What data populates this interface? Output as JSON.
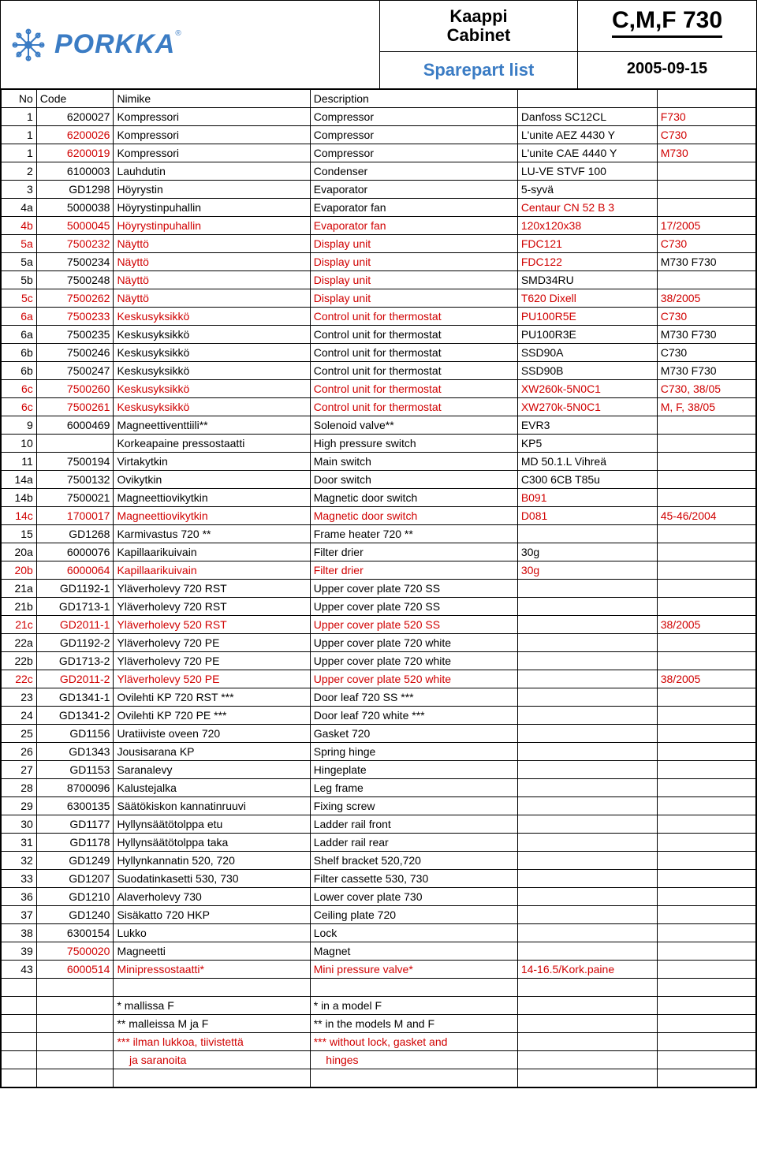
{
  "header": {
    "logo_text": "PORKKA",
    "title_line1": "Kaappi",
    "title_line2": "Cabinet",
    "model": "C,M,F 730",
    "sparepart": "Sparepart list",
    "date": "2005-09-15"
  },
  "columns": [
    "No",
    "Code",
    "Nimike",
    "Description",
    "",
    ""
  ],
  "rows": [
    {
      "no": "1",
      "code": "6200027",
      "nimike": "Kompressori",
      "desc": "Compressor",
      "spec": "Danfoss SC12CL",
      "note": "F730",
      "red_cols": [
        "note"
      ]
    },
    {
      "no": "1",
      "code": "6200026",
      "nimike": "Kompressori",
      "desc": "Compressor",
      "spec": "L'unite AEZ 4430 Y",
      "note": "C730",
      "red_cols": [
        "code",
        "note"
      ]
    },
    {
      "no": "1",
      "code": "6200019",
      "nimike": "Kompressori",
      "desc": "Compressor",
      "spec": "L'unite CAE 4440 Y",
      "note": "M730",
      "red_cols": [
        "code",
        "note"
      ]
    },
    {
      "no": "2",
      "code": "6100003",
      "nimike": "Lauhdutin",
      "desc": "Condenser",
      "spec": "LU-VE STVF 100",
      "note": "",
      "red_cols": []
    },
    {
      "no": "3",
      "code": "GD1298",
      "nimike": "Höyrystin",
      "desc": "Evaporator",
      "spec": "5-syvä",
      "note": "",
      "red_cols": []
    },
    {
      "no": "4a",
      "code": "5000038",
      "nimike": "Höyrystinpuhallin",
      "desc": "Evaporator fan",
      "spec": "Centaur CN 52 B 3",
      "note": "",
      "red_cols": [
        "spec"
      ]
    },
    {
      "no": "4b",
      "code": "5000045",
      "nimike": "Höyrystinpuhallin",
      "desc": "Evaporator fan",
      "spec": "120x120x38",
      "note": "17/2005",
      "red_cols": [
        "no",
        "code",
        "nimike",
        "desc",
        "spec",
        "note"
      ]
    },
    {
      "no": "5a",
      "code": "7500232",
      "nimike": "Näyttö",
      "desc": "Display unit",
      "spec": "FDC121",
      "note": "C730",
      "red_cols": [
        "no",
        "code",
        "nimike",
        "desc",
        "spec",
        "note"
      ]
    },
    {
      "no": "5a",
      "code": "7500234",
      "nimike": "Näyttö",
      "desc": "Display unit",
      "spec": "FDC122",
      "note": "M730 F730",
      "red_cols": [
        "nimike",
        "desc",
        "spec"
      ]
    },
    {
      "no": "5b",
      "code": "7500248",
      "nimike": "Näyttö",
      "desc": "Display unit",
      "spec": "SMD34RU",
      "note": "",
      "red_cols": [
        "nimike",
        "desc"
      ]
    },
    {
      "no": "5c",
      "code": "7500262",
      "nimike": "Näyttö",
      "desc": "Display unit",
      "spec": "T620 Dixell",
      "note": "38/2005",
      "red_cols": [
        "no",
        "code",
        "nimike",
        "desc",
        "spec",
        "note"
      ]
    },
    {
      "no": "6a",
      "code": "7500233",
      "nimike": "Keskusyksikkö",
      "desc": "Control unit for thermostat",
      "spec": "PU100R5E",
      "note": "C730",
      "red_cols": [
        "no",
        "code",
        "nimike",
        "desc",
        "spec",
        "note"
      ]
    },
    {
      "no": "6a",
      "code": "7500235",
      "nimike": "Keskusyksikkö",
      "desc": "Control unit for thermostat",
      "spec": "PU100R3E",
      "note": "M730 F730",
      "red_cols": []
    },
    {
      "no": "6b",
      "code": "7500246",
      "nimike": "Keskusyksikkö",
      "desc": "Control unit for thermostat",
      "spec": "SSD90A",
      "note": "C730",
      "red_cols": []
    },
    {
      "no": "6b",
      "code": "7500247",
      "nimike": "Keskusyksikkö",
      "desc": "Control unit for thermostat",
      "spec": "SSD90B",
      "note": "M730 F730",
      "red_cols": []
    },
    {
      "no": "6c",
      "code": "7500260",
      "nimike": "Keskusyksikkö",
      "desc": "Control unit for thermostat",
      "spec": "XW260k-5N0C1",
      "note": "C730, 38/05",
      "red_cols": [
        "no",
        "code",
        "nimike",
        "desc",
        "spec",
        "note"
      ]
    },
    {
      "no": "6c",
      "code": "7500261",
      "nimike": "Keskusyksikkö",
      "desc": "Control unit for thermostat",
      "spec": "XW270k-5N0C1",
      "note": "M, F, 38/05",
      "red_cols": [
        "no",
        "code",
        "nimike",
        "desc",
        "spec",
        "note"
      ]
    },
    {
      "no": "9",
      "code": "6000469",
      "nimike": "Magneettiventtiili**",
      "desc": "Solenoid valve**",
      "spec": "EVR3",
      "note": "",
      "red_cols": []
    },
    {
      "no": "10",
      "code": "",
      "nimike": "Korkeapaine pressostaatti",
      "desc": "High pressure switch",
      "spec": "KP5",
      "note": "",
      "red_cols": []
    },
    {
      "no": "11",
      "code": "7500194",
      "nimike": "Virtakytkin",
      "desc": "Main switch",
      "spec": "MD 50.1.L Vihreä",
      "note": "",
      "red_cols": []
    },
    {
      "no": "14a",
      "code": "7500132",
      "nimike": "Ovikytkin",
      "desc": "Door switch",
      "spec": "C300 6CB T85u",
      "note": "",
      "red_cols": []
    },
    {
      "no": "14b",
      "code": "7500021",
      "nimike": "Magneettiovikytkin",
      "desc": "Magnetic door switch",
      "spec": "B091",
      "note": "",
      "red_cols": [
        "spec"
      ]
    },
    {
      "no": "14c",
      "code": "1700017",
      "nimike": "Magneettiovikytkin",
      "desc": "Magnetic door switch",
      "spec": "D081",
      "note": "45-46/2004",
      "red_cols": [
        "no",
        "code",
        "nimike",
        "desc",
        "spec",
        "note"
      ]
    },
    {
      "no": "15",
      "code": "GD1268",
      "nimike": "Karmivastus 720 **",
      "desc": "Frame heater 720 **",
      "spec": "",
      "note": "",
      "red_cols": []
    },
    {
      "no": "20a",
      "code": "6000076",
      "nimike": "Kapillaarikuivain",
      "desc": "Filter drier",
      "spec": "30g",
      "note": "",
      "red_cols": []
    },
    {
      "no": "20b",
      "code": "6000064",
      "nimike": "Kapillaarikuivain",
      "desc": "Filter drier",
      "spec": "30g",
      "note": "",
      "red_cols": [
        "no",
        "code",
        "nimike",
        "desc",
        "spec"
      ]
    },
    {
      "no": "21a",
      "code": "GD1192-1",
      "nimike": "Yläverholevy 720 RST",
      "desc": "Upper cover plate 720 SS",
      "spec": "",
      "note": "",
      "red_cols": []
    },
    {
      "no": "21b",
      "code": "GD1713-1",
      "nimike": "Yläverholevy 720 RST",
      "desc": "Upper cover plate 720 SS",
      "spec": "",
      "note": "",
      "red_cols": []
    },
    {
      "no": "21c",
      "code": "GD2011-1",
      "nimike": "Yläverholevy 520 RST",
      "desc": "Upper cover plate 520 SS",
      "spec": "",
      "note": "38/2005",
      "red_cols": [
        "no",
        "code",
        "nimike",
        "desc",
        "note"
      ]
    },
    {
      "no": "22a",
      "code": "GD1192-2",
      "nimike": "Yläverholevy 720 PE",
      "desc": "Upper cover plate 720 white",
      "spec": "",
      "note": "",
      "red_cols": []
    },
    {
      "no": "22b",
      "code": "GD1713-2",
      "nimike": "Yläverholevy 720 PE",
      "desc": "Upper cover plate 720 white",
      "spec": "",
      "note": "",
      "red_cols": []
    },
    {
      "no": "22c",
      "code": "GD2011-2",
      "nimike": "Yläverholevy 520 PE",
      "desc": "Upper cover plate 520 white",
      "spec": "",
      "note": "38/2005",
      "red_cols": [
        "no",
        "code",
        "nimike",
        "desc",
        "note"
      ]
    },
    {
      "no": "23",
      "code": "GD1341-1",
      "nimike": "Ovilehti KP 720 RST ***",
      "desc": "Door leaf 720 SS ***",
      "spec": "",
      "note": "",
      "red_cols": []
    },
    {
      "no": "24",
      "code": "GD1341-2",
      "nimike": "Ovilehti KP 720 PE ***",
      "desc": "Door leaf 720 white ***",
      "spec": "",
      "note": "",
      "red_cols": []
    },
    {
      "no": "25",
      "code": "GD1156",
      "nimike": "Uratiiviste oveen 720",
      "desc": "Gasket 720",
      "spec": "",
      "note": "",
      "red_cols": []
    },
    {
      "no": "26",
      "code": "GD1343",
      "nimike": "Jousisarana KP",
      "desc": "Spring hinge",
      "spec": "",
      "note": "",
      "red_cols": []
    },
    {
      "no": "27",
      "code": "GD1153",
      "nimike": "Saranalevy",
      "desc": "Hingeplate",
      "spec": "",
      "note": "",
      "red_cols": []
    },
    {
      "no": "28",
      "code": "8700096",
      "nimike": "Kalustejalka",
      "desc": "Leg frame",
      "spec": "",
      "note": "",
      "red_cols": []
    },
    {
      "no": "29",
      "code": "6300135",
      "nimike": "Säätökiskon kannatinruuvi",
      "desc": "Fixing screw",
      "spec": "",
      "note": "",
      "red_cols": []
    },
    {
      "no": "30",
      "code": "GD1177",
      "nimike": "Hyllynsäätötolppa etu",
      "desc": "Ladder rail front",
      "spec": "",
      "note": "",
      "red_cols": []
    },
    {
      "no": "31",
      "code": "GD1178",
      "nimike": "Hyllynsäätötolppa taka",
      "desc": "Ladder rail rear",
      "spec": "",
      "note": "",
      "red_cols": []
    },
    {
      "no": "32",
      "code": "GD1249",
      "nimike": "Hyllynkannatin 520, 720",
      "desc": "Shelf bracket 520,720",
      "spec": "",
      "note": "",
      "red_cols": []
    },
    {
      "no": "33",
      "code": "GD1207",
      "nimike": "Suodatinkasetti 530, 730",
      "desc": "Filter cassette 530, 730",
      "spec": "",
      "note": "",
      "red_cols": []
    },
    {
      "no": "36",
      "code": "GD1210",
      "nimike": "Alaverholevy 730",
      "desc": "Lower cover plate 730",
      "spec": "",
      "note": "",
      "red_cols": []
    },
    {
      "no": "37",
      "code": "GD1240",
      "nimike": "Sisäkatto 720 HKP",
      "desc": "Ceiling plate 720",
      "spec": "",
      "note": "",
      "red_cols": []
    },
    {
      "no": "38",
      "code": "6300154",
      "nimike": "Lukko",
      "desc": "Lock",
      "spec": "",
      "note": "",
      "red_cols": []
    },
    {
      "no": "39",
      "code": "7500020",
      "nimike": "Magneetti",
      "desc": "Magnet",
      "spec": "",
      "note": "",
      "red_cols": [
        "code"
      ]
    },
    {
      "no": "43",
      "code": "6000514",
      "nimike": "Minipressostaatti*",
      "desc": "Mini pressure valve*",
      "spec": "14-16.5/Kork.paine",
      "note": "",
      "red_cols": [
        "code",
        "nimike",
        "desc",
        "spec"
      ]
    },
    {
      "no": "",
      "code": "",
      "nimike": "",
      "desc": "",
      "spec": "",
      "note": "",
      "red_cols": []
    },
    {
      "no": "",
      "code": "",
      "nimike": "* mallissa F",
      "desc": "* in a model F",
      "spec": "",
      "note": "",
      "red_cols": []
    },
    {
      "no": "",
      "code": "",
      "nimike": "** malleissa M ja F",
      "desc": "** in the models M and F",
      "spec": "",
      "note": "",
      "red_cols": []
    },
    {
      "no": "",
      "code": "",
      "nimike": "*** ilman lukkoa, tiivistettä",
      "desc": "*** without lock, gasket and",
      "spec": "",
      "note": "",
      "red_cols": [
        "nimike",
        "desc"
      ]
    },
    {
      "no": "",
      "code": "",
      "nimike": "    ja saranoita",
      "desc": "    hinges",
      "spec": "",
      "note": "",
      "red_cols": [
        "nimike",
        "desc"
      ]
    },
    {
      "no": "",
      "code": "",
      "nimike": "",
      "desc": "",
      "spec": "",
      "note": "",
      "red_cols": []
    }
  ]
}
